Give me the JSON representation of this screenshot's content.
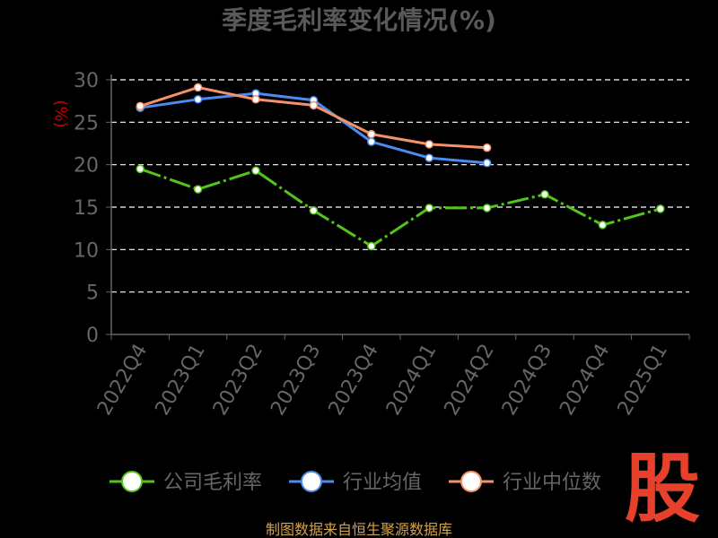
{
  "chart_data": {
    "type": "line",
    "title": "季度毛利率变化情况(%)",
    "ylabel": "(%)",
    "xlabel": "",
    "categories": [
      "2022Q4",
      "2023Q1",
      "2023Q2",
      "2023Q3",
      "2023Q4",
      "2024Q1",
      "2024Q2",
      "2024Q3",
      "2024Q4",
      "2025Q1"
    ],
    "ylim": [
      0,
      30
    ],
    "yticks": [
      0,
      5,
      10,
      15,
      20,
      25,
      30
    ],
    "grid": true,
    "legend_position": "bottom",
    "series": [
      {
        "name": "公司毛利率",
        "values": [
          19.5,
          17.1,
          19.3,
          14.6,
          10.4,
          14.9,
          14.9,
          16.5,
          12.9,
          14.8
        ]
      },
      {
        "name": "行业均值",
        "values": [
          26.7,
          27.7,
          28.4,
          27.6,
          22.7,
          20.8,
          20.2,
          null,
          null,
          null
        ]
      },
      {
        "name": "行业中位数",
        "values": [
          26.9,
          29.1,
          27.7,
          27.0,
          23.6,
          22.4,
          22.0,
          null,
          null,
          null
        ]
      }
    ]
  },
  "colors": {
    "series": [
      "#52c41a",
      "#4a8cf0",
      "#f4926a"
    ],
    "title": "#595959",
    "ylabel": "#cc0000",
    "axis": "#666666",
    "tick_text": "#666666",
    "grid": "#ffffff",
    "source": "#d4a24a",
    "logo": "#e8412b"
  },
  "source_text": "制图数据来自恒生聚源数据库",
  "logo_text": "股"
}
